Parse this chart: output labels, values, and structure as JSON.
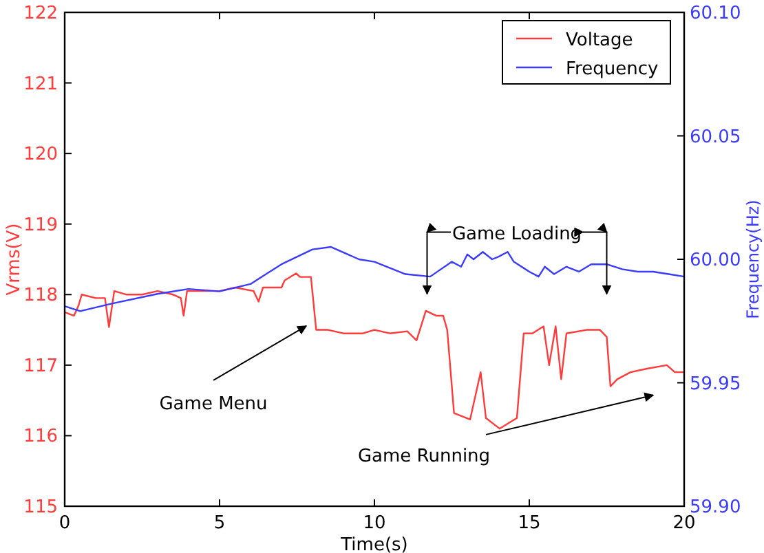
{
  "chart_data": {
    "type": "line",
    "xlabel": "Time(s)",
    "ylabel": "Vrms(V)",
    "y2label": "Frequency(Hz)",
    "xlim": [
      0,
      20
    ],
    "xticks": [
      0,
      5,
      10,
      15,
      20
    ],
    "ylim": [
      115,
      122
    ],
    "yticks": [
      115,
      116,
      117,
      118,
      119,
      120,
      121,
      122
    ],
    "y2lim": [
      59.9,
      60.1
    ],
    "y2ticks": [
      {
        "value": 59.9,
        "label": "59.90"
      },
      {
        "value": 59.95,
        "label": "59.95"
      },
      {
        "value": 60.0,
        "label": "60.00"
      },
      {
        "value": 60.05,
        "label": "60.05"
      },
      {
        "value": 60.1,
        "label": "60.10"
      }
    ],
    "grid": false,
    "legend": "top right",
    "line_style": "solid",
    "marker": "none",
    "series": [
      {
        "name": "Voltage",
        "color": "#ff3b3b",
        "x": [
          0,
          0.3,
          0.45,
          0.55,
          1.0,
          1.3,
          1.43,
          1.6,
          2.0,
          2.5,
          3.0,
          3.5,
          3.75,
          3.84,
          3.95,
          4.3,
          5.0,
          5.5,
          6.1,
          6.26,
          6.4,
          7.0,
          7.1,
          7.47,
          7.6,
          7.95,
          8.12,
          8.5,
          9.0,
          9.63,
          10.0,
          10.5,
          11.06,
          11.36,
          11.66,
          12.0,
          12.22,
          12.35,
          12.57,
          13.09,
          13.43,
          13.6,
          14.04,
          14.6,
          14.82,
          15.1,
          15.46,
          15.64,
          15.85,
          16.03,
          16.2,
          16.85,
          17.28,
          17.5,
          17.62,
          17.84,
          18.27,
          18.8,
          19.44,
          19.7,
          20
        ],
        "values": [
          117.75,
          117.7,
          117.85,
          118.0,
          117.95,
          117.95,
          117.54,
          118.05,
          118.0,
          118.0,
          118.05,
          118.0,
          117.95,
          117.7,
          118.05,
          118.05,
          118.05,
          118.1,
          118.05,
          117.9,
          118.1,
          118.1,
          118.2,
          118.3,
          118.25,
          118.25,
          117.5,
          117.5,
          117.45,
          117.45,
          117.5,
          117.45,
          117.48,
          117.35,
          117.77,
          117.7,
          117.7,
          117.5,
          116.32,
          116.23,
          116.9,
          116.25,
          116.1,
          116.25,
          117.45,
          117.45,
          117.55,
          117.0,
          117.55,
          116.8,
          117.45,
          117.5,
          117.5,
          117.4,
          116.7,
          116.8,
          116.9,
          116.95,
          117.0,
          116.9,
          116.9
        ]
      },
      {
        "name": "Frequency",
        "color": "#3b3bff",
        "axis": "y2",
        "x": [
          0,
          0.5,
          1.5,
          3,
          4,
          5,
          6,
          6.5,
          7,
          8,
          8.6,
          9.5,
          10,
          11,
          11.8,
          12.5,
          12.8,
          13.0,
          13.2,
          13.5,
          13.8,
          14.0,
          14.3,
          14.5,
          15.0,
          15.3,
          15.5,
          15.8,
          16.2,
          16.6,
          17.0,
          17.5,
          18.0,
          18.5,
          19.0,
          19.5,
          20
        ],
        "values": [
          59.981,
          59.979,
          59.982,
          59.986,
          59.988,
          59.987,
          59.99,
          59.994,
          59.998,
          60.004,
          60.005,
          60.0,
          59.999,
          59.994,
          59.993,
          59.999,
          59.997,
          60.002,
          60.0,
          60.003,
          60.0,
          60.001,
          60.003,
          59.999,
          59.995,
          59.993,
          59.997,
          59.994,
          59.997,
          59.995,
          59.998,
          59.998,
          59.996,
          59.995,
          59.995,
          59.994,
          59.993
        ]
      }
    ],
    "annotations": [
      "Game Menu",
      "Game Loading",
      "Game Running"
    ]
  }
}
